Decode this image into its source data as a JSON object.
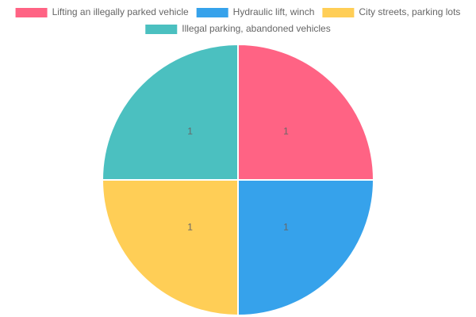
{
  "chart_data": {
    "type": "pie",
    "categories": [
      "Lifting an illegally parked vehicle",
      "Hydraulic lift, winch",
      "City streets, parking lots",
      "Illegal parking, abandoned vehicles"
    ],
    "values": [
      1,
      1,
      1,
      1
    ],
    "colors": [
      "#ff6384",
      "#36a2eb",
      "#ffce56",
      "#4bc0c0"
    ],
    "legend": "top"
  }
}
